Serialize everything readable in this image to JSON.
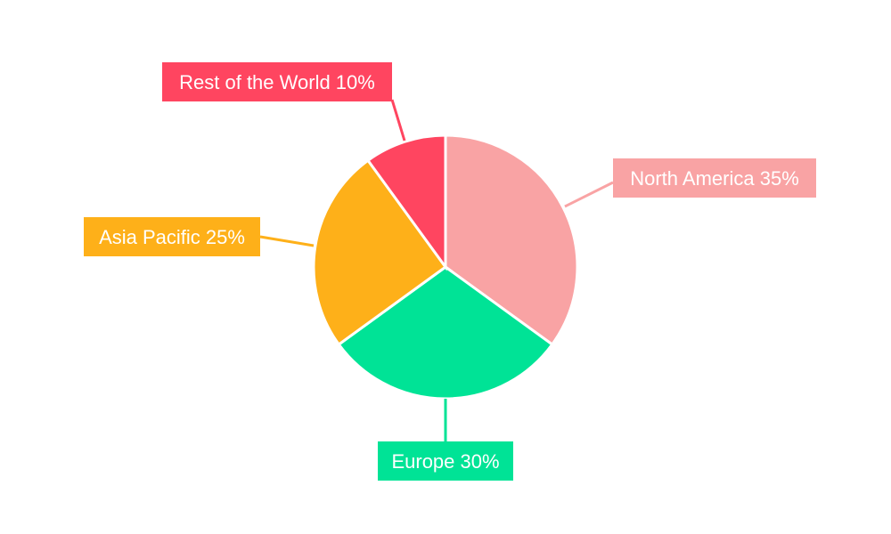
{
  "chart_data": {
    "type": "pie",
    "title": "",
    "start_angle_deg": 0,
    "direction": "clockwise",
    "slices": [
      {
        "label": "North America",
        "value": 35,
        "display": "North America 35%",
        "color": "#F9A3A4"
      },
      {
        "label": "Europe",
        "value": 30,
        "display": "Europe 30%",
        "color": "#00E396"
      },
      {
        "label": "Asia Pacific",
        "value": 25,
        "display": "Asia Pacific 25%",
        "color": "#FEB019"
      },
      {
        "label": "Rest of the World",
        "value": 10,
        "display": "Rest of the World 10%",
        "color": "#FF4560"
      }
    ]
  }
}
